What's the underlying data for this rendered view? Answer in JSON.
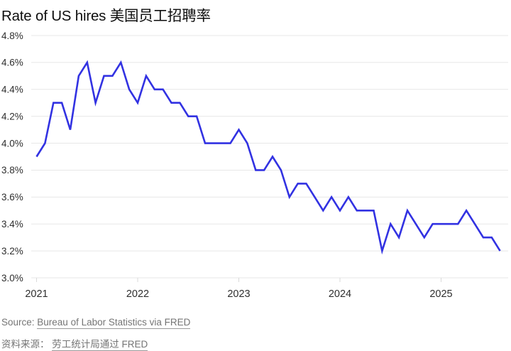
{
  "title": "Rate of US hires 美国员工招聘率",
  "source": {
    "label_en": "Source: ",
    "link_en": "Bureau of Labor Statistics via FRED",
    "label_zh": "资料来源： ",
    "link_zh": "劳工统计局通过 FRED"
  },
  "chart_data": {
    "type": "line",
    "title": "Rate of US hires 美国员工招聘率",
    "series_name": "US hires rate (%)",
    "frequency": "monthly",
    "grid": true,
    "legend": "none",
    "line_color": "#3232e2",
    "ylim": [
      3.0,
      4.8
    ],
    "y_tick_labels": [
      "4.8%",
      "4.6%",
      "4.4%",
      "4.2%",
      "4.0%",
      "3.8%",
      "3.6%",
      "3.4%",
      "3.2%",
      "3.0%"
    ],
    "x_tick_labels": [
      "2021",
      "2022",
      "2023",
      "2024",
      "2025"
    ],
    "x": [
      "2021-01",
      "2021-02",
      "2021-03",
      "2021-04",
      "2021-05",
      "2021-06",
      "2021-07",
      "2021-08",
      "2021-09",
      "2021-10",
      "2021-11",
      "2021-12",
      "2022-01",
      "2022-02",
      "2022-03",
      "2022-04",
      "2022-05",
      "2022-06",
      "2022-07",
      "2022-08",
      "2022-09",
      "2022-10",
      "2022-11",
      "2022-12",
      "2023-01",
      "2023-02",
      "2023-03",
      "2023-04",
      "2023-05",
      "2023-06",
      "2023-07",
      "2023-08",
      "2023-09",
      "2023-10",
      "2023-11",
      "2023-12",
      "2024-01",
      "2024-02",
      "2024-03",
      "2024-04",
      "2024-05",
      "2024-06",
      "2024-07",
      "2024-08",
      "2024-09",
      "2024-10",
      "2024-11",
      "2024-12",
      "2025-01",
      "2025-02",
      "2025-03",
      "2025-04",
      "2025-05",
      "2025-06",
      "2025-07",
      "2025-08"
    ],
    "values": [
      3.9,
      4.0,
      4.3,
      4.3,
      4.1,
      4.5,
      4.6,
      4.3,
      4.5,
      4.5,
      4.6,
      4.4,
      4.3,
      4.5,
      4.4,
      4.4,
      4.3,
      4.3,
      4.2,
      4.2,
      4.0,
      4.0,
      4.0,
      4.0,
      4.1,
      4.0,
      3.8,
      3.8,
      3.9,
      3.8,
      3.6,
      3.7,
      3.7,
      3.6,
      3.5,
      3.6,
      3.5,
      3.6,
      3.5,
      3.5,
      3.5,
      3.2,
      3.4,
      3.3,
      3.5,
      3.4,
      3.3,
      3.4,
      3.4,
      3.4,
      3.4,
      3.5,
      3.4,
      3.3,
      3.3,
      3.2
    ]
  }
}
